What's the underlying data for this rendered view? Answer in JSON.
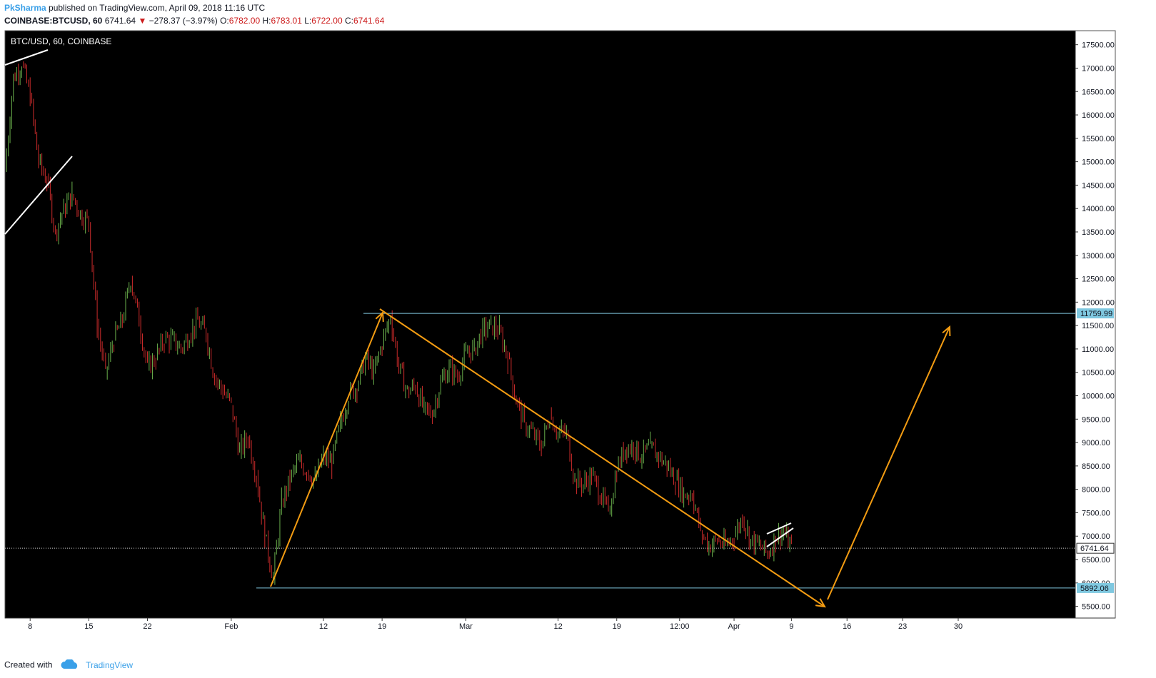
{
  "header": {
    "author": "PkSharma",
    "published_text": "published on TradingView.com, April 09, 2018 11:16 UTC",
    "symbol_line": "COINBASE:BTCUSD, 60",
    "last": "6741.64",
    "change": "−278.37 (−3.97%)",
    "o_label": "O:",
    "o_val": "6782.00",
    "h_label": "H:",
    "h_val": "6783.01",
    "l_label": "L:",
    "l_val": "6722.00",
    "c_label": "C:",
    "c_val": "6741.64"
  },
  "footer": {
    "created_with": "Created with",
    "brand": "TradingView"
  },
  "colors": {
    "background": "#000000",
    "up": "#6ab04c",
    "down": "#cc2b2b",
    "orange": "#f39c12",
    "hline": "#7fc8e0",
    "white": "#ffffff"
  },
  "chart_data": {
    "type": "line",
    "title": "BTC/USD, 60, COINBASE",
    "ylim": [
      5250,
      17800
    ],
    "y_ticks": [
      5500,
      6000,
      6500,
      7000,
      7500,
      8000,
      8500,
      9000,
      9500,
      10000,
      10500,
      11000,
      11500,
      12000,
      12500,
      13000,
      13500,
      14000,
      14500,
      15000,
      15500,
      16000,
      16500,
      17000,
      17500
    ],
    "y_tick_labels": [
      "5500.00",
      "6000.00",
      "6500.00",
      "7000.00",
      "7500.00",
      "8000.00",
      "8500.00",
      "9000.00",
      "9500.00",
      "10000.00",
      "10500.00",
      "11000.00",
      "11500.00",
      "12000.00",
      "12500.00",
      "13000.00",
      "13500.00",
      "14000.00",
      "14500.00",
      "15000.00",
      "15500.00",
      "16000.00",
      "16500.00",
      "17000.00",
      "17500.00"
    ],
    "x_range": [
      "2018-01-05",
      "2018-04-06",
      "2018-04-30"
    ],
    "x_ticks": [
      {
        "date": "2018-01-08",
        "label": "8"
      },
      {
        "date": "2018-01-15",
        "label": "15"
      },
      {
        "date": "2018-01-22",
        "label": "22"
      },
      {
        "date": "2018-02-01",
        "label": "Feb"
      },
      {
        "date": "2018-02-12",
        "label": "12"
      },
      {
        "date": "2018-02-19",
        "label": "19"
      },
      {
        "date": "2018-03-01",
        "label": "Mar"
      },
      {
        "date": "2018-03-12",
        "label": "12"
      },
      {
        "date": "2018-03-19",
        "label": "19"
      },
      {
        "date": "2018-03-26T12:00",
        "label": "12:00"
      },
      {
        "date": "2018-04-02",
        "label": "Apr"
      },
      {
        "date": "2018-04-09",
        "label": "9"
      },
      {
        "date": "2018-04-16",
        "label": "16"
      },
      {
        "date": "2018-04-23",
        "label": "23"
      },
      {
        "date": "2018-04-30",
        "label": "30"
      }
    ],
    "series": [
      {
        "values": [
          [
            "2018-01-05",
            14800
          ],
          [
            "2018-01-06",
            16800
          ],
          [
            "2018-01-07",
            17100
          ],
          [
            "2018-01-08",
            16400
          ],
          [
            "2018-01-09",
            15000
          ],
          [
            "2018-01-10",
            14600
          ],
          [
            "2018-01-11",
            13500
          ],
          [
            "2018-01-12",
            14000
          ],
          [
            "2018-01-13",
            14300
          ],
          [
            "2018-01-14",
            13900
          ],
          [
            "2018-01-15",
            13700
          ],
          [
            "2018-01-16",
            11500
          ],
          [
            "2018-01-17",
            10500
          ],
          [
            "2018-01-18",
            11200
          ],
          [
            "2018-01-19",
            11600
          ],
          [
            "2018-01-20",
            12500
          ],
          [
            "2018-01-21",
            11600
          ],
          [
            "2018-01-22",
            10600
          ],
          [
            "2018-01-23",
            10800
          ],
          [
            "2018-01-24",
            11200
          ],
          [
            "2018-01-25",
            11200
          ],
          [
            "2018-01-26",
            11000
          ],
          [
            "2018-01-27",
            11300
          ],
          [
            "2018-01-28",
            11600
          ],
          [
            "2018-01-29",
            11300
          ],
          [
            "2018-01-30",
            10400
          ],
          [
            "2018-01-31",
            10100
          ],
          [
            "2018-02-01",
            9800
          ],
          [
            "2018-02-02",
            8800
          ],
          [
            "2018-02-03",
            9100
          ],
          [
            "2018-02-04",
            8300
          ],
          [
            "2018-02-05",
            7000
          ],
          [
            "2018-02-06",
            6100
          ],
          [
            "2018-02-07",
            7700
          ],
          [
            "2018-02-08",
            8200
          ],
          [
            "2018-02-09",
            8600
          ],
          [
            "2018-02-10",
            8400
          ],
          [
            "2018-02-11",
            8200
          ],
          [
            "2018-02-12",
            8700
          ],
          [
            "2018-02-13",
            8550
          ],
          [
            "2018-02-14",
            9400
          ],
          [
            "2018-02-15",
            10000
          ],
          [
            "2018-02-16",
            10200
          ],
          [
            "2018-02-17",
            10800
          ],
          [
            "2018-02-18",
            10500
          ],
          [
            "2018-02-19",
            11100
          ],
          [
            "2018-02-20",
            11700
          ],
          [
            "2018-02-21",
            10600
          ],
          [
            "2018-02-22",
            10100
          ],
          [
            "2018-02-23",
            10200
          ],
          [
            "2018-02-24",
            9700
          ],
          [
            "2018-02-25",
            9600
          ],
          [
            "2018-02-26",
            10300
          ],
          [
            "2018-02-27",
            10600
          ],
          [
            "2018-02-28",
            10400
          ],
          [
            "2018-03-01",
            10900
          ],
          [
            "2018-03-02",
            11000
          ],
          [
            "2018-03-03",
            11400
          ],
          [
            "2018-03-04",
            11500
          ],
          [
            "2018-03-05",
            11400
          ],
          [
            "2018-03-06",
            10800
          ],
          [
            "2018-03-07",
            9900
          ],
          [
            "2018-03-08",
            9400
          ],
          [
            "2018-03-09",
            9200
          ],
          [
            "2018-03-10",
            8900
          ],
          [
            "2018-03-11",
            9600
          ],
          [
            "2018-03-12",
            9200
          ],
          [
            "2018-03-13",
            9200
          ],
          [
            "2018-03-14",
            8200
          ],
          [
            "2018-03-15",
            8100
          ],
          [
            "2018-03-16",
            8300
          ],
          [
            "2018-03-17",
            7900
          ],
          [
            "2018-03-18",
            7500
          ],
          [
            "2018-03-19",
            8400
          ],
          [
            "2018-03-20",
            8900
          ],
          [
            "2018-03-21",
            8900
          ],
          [
            "2018-03-22",
            8700
          ],
          [
            "2018-03-23",
            8900
          ],
          [
            "2018-03-24",
            8700
          ],
          [
            "2018-03-25",
            8500
          ],
          [
            "2018-03-26",
            8200
          ],
          [
            "2018-03-27",
            7900
          ],
          [
            "2018-03-28",
            7900
          ],
          [
            "2018-03-29",
            7100
          ],
          [
            "2018-03-30",
            6800
          ],
          [
            "2018-03-31",
            6900
          ],
          [
            "2018-04-01",
            6800
          ],
          [
            "2018-04-02",
            7000
          ],
          [
            "2018-04-03",
            7400
          ],
          [
            "2018-04-04",
            6900
          ],
          [
            "2018-04-05",
            6800
          ],
          [
            "2018-04-06",
            6620
          ],
          [
            "2018-04-07",
            6950
          ],
          [
            "2018-04-08",
            7100
          ],
          [
            "2018-04-09",
            6741.64
          ]
        ]
      }
    ],
    "price_labels": [
      {
        "value": 11759.99,
        "label": "11759.99"
      },
      {
        "value": 6741.64,
        "label": "6741.64"
      },
      {
        "value": 5892.06,
        "label": "5892.06"
      }
    ],
    "grid": false,
    "legend": "none"
  }
}
